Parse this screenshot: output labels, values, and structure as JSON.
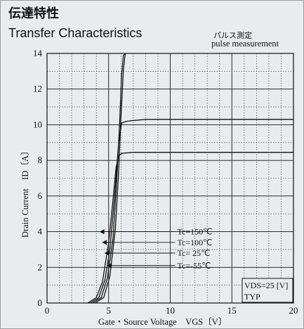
{
  "header": {
    "title_jp": "伝達特性",
    "title_en": "Transfer Characteristics",
    "note_jp": "パルス測定",
    "note_en": "pulse measurement"
  },
  "chart_data": {
    "type": "line",
    "title": "Transfer Characteristics",
    "xlabel": "Gate・Source Voltage　VGS〔V〕",
    "ylabel": "Drain Current　ID〔A〕",
    "xlim": [
      0,
      20
    ],
    "ylim": [
      0,
      14
    ],
    "x_ticks": [
      0,
      5,
      10,
      15,
      20
    ],
    "y_ticks": [
      0,
      2,
      4,
      6,
      8,
      10,
      12,
      14
    ],
    "grid": true,
    "series": [
      {
        "name": "Tc=150℃",
        "points": [
          [
            3.3,
            0
          ],
          [
            4.0,
            0.3
          ],
          [
            4.5,
            1.2
          ],
          [
            5.0,
            3.4
          ],
          [
            5.3,
            5.4
          ],
          [
            5.6,
            7.6
          ],
          [
            5.85,
            8.3
          ],
          [
            6.1,
            8.4
          ],
          [
            7,
            8.45
          ],
          [
            20,
            8.45
          ]
        ]
      },
      {
        "name": "Tc=100℃",
        "points": [
          [
            3.5,
            0
          ],
          [
            4.2,
            0.3
          ],
          [
            4.7,
            1.3
          ],
          [
            5.1,
            3.0
          ],
          [
            5.5,
            6.1
          ],
          [
            5.8,
            8.9
          ],
          [
            6.05,
            10.1
          ],
          [
            6.5,
            10.2
          ],
          [
            8,
            10.3
          ],
          [
            20,
            10.3
          ]
        ]
      },
      {
        "name": "Tc= 25℃",
        "points": [
          [
            3.7,
            0
          ],
          [
            4.4,
            0.3
          ],
          [
            4.9,
            1.4
          ],
          [
            5.35,
            3.6
          ],
          [
            5.65,
            6.8
          ],
          [
            5.9,
            10.2
          ],
          [
            6.05,
            12.8
          ],
          [
            6.2,
            13.9
          ],
          [
            6.4,
            14
          ]
        ]
      },
      {
        "name": "Tc=-55℃",
        "points": [
          [
            3.9,
            0
          ],
          [
            4.6,
            0.3
          ],
          [
            5.1,
            1.5
          ],
          [
            5.55,
            4.2
          ],
          [
            5.8,
            7.2
          ],
          [
            6.0,
            10.4
          ],
          [
            6.2,
            13.1
          ],
          [
            6.35,
            14
          ]
        ]
      }
    ],
    "annotations": [
      "VDS=25 [V]",
      "TYP"
    ]
  },
  "ticks_x_labels": [
    "0",
    "5",
    "10",
    "15",
    "20"
  ],
  "ticks_y_labels": [
    "0",
    "2",
    "4",
    "6",
    "8",
    "10",
    "12",
    "14"
  ],
  "legend": [
    "Tc=150℃",
    "Tc=100℃",
    "Tc= 25℃",
    "Tc=-55℃"
  ],
  "condition": {
    "vds": "VDS=25 [V]",
    "typ": "TYP"
  }
}
